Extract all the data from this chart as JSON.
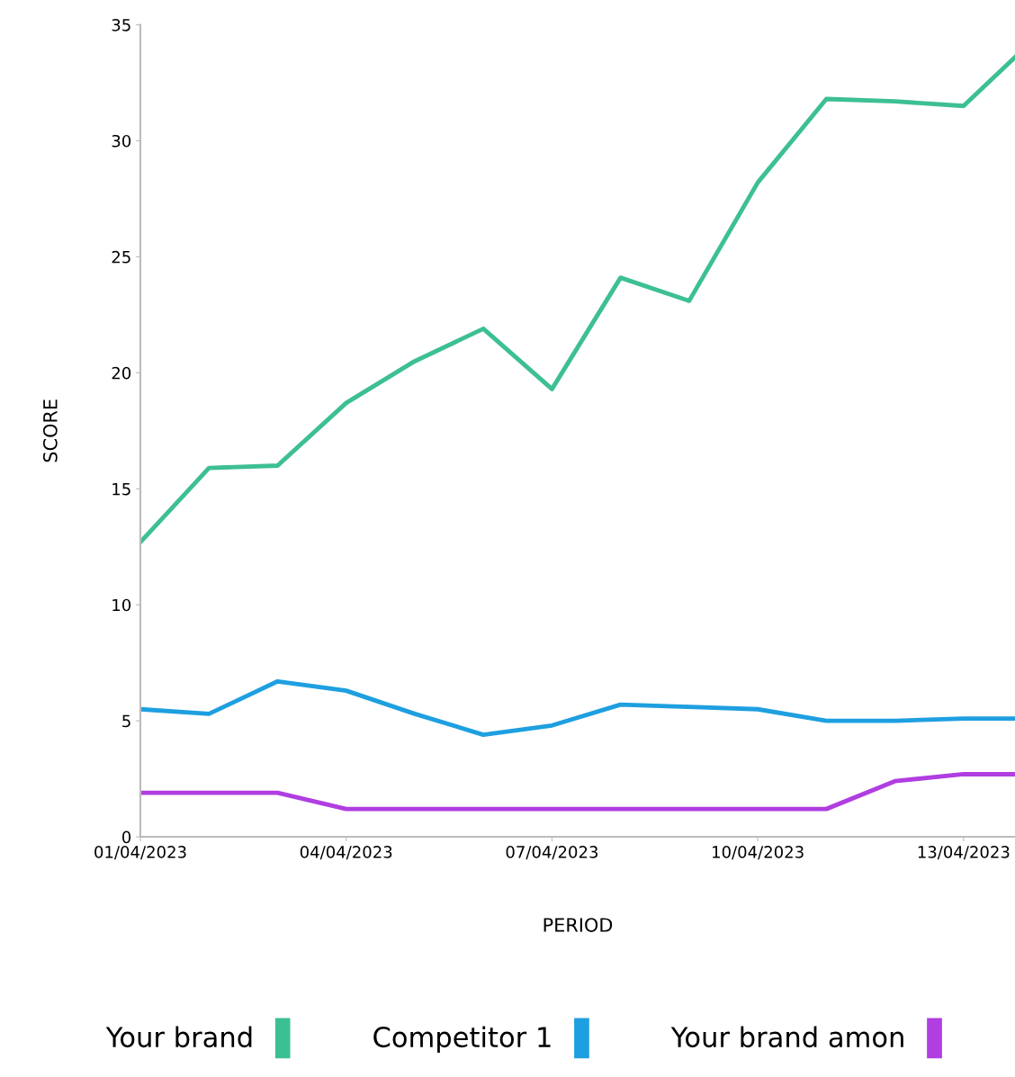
{
  "chart_data": {
    "type": "line",
    "xlabel": "PERIOD",
    "ylabel": "SCORE",
    "x": [
      "2023-04-01",
      "2023-04-02",
      "2023-04-03",
      "2023-04-04",
      "2023-04-05",
      "2023-04-06",
      "2023-04-07",
      "2023-04-08",
      "2023-04-09",
      "2023-04-10",
      "2023-04-11",
      "2023-04-12",
      "2023-04-13",
      "2023-04-13T18:00"
    ],
    "series": [
      {
        "name": "Your brand",
        "color": "#3dbf94",
        "values": [
          12.7,
          15.9,
          16.0,
          18.7,
          20.5,
          21.9,
          19.3,
          24.1,
          23.1,
          28.2,
          31.8,
          31.7,
          31.5,
          33.6
        ]
      },
      {
        "name": "Competitor 1",
        "color": "#1e9fe0",
        "values": [
          5.5,
          5.3,
          6.7,
          6.3,
          5.3,
          4.4,
          4.8,
          5.7,
          5.6,
          5.5,
          5.0,
          5.0,
          5.1,
          5.1
        ]
      },
      {
        "name": "Your brand amon",
        "color": "#b03ee0",
        "values": [
          1.9,
          1.9,
          1.9,
          1.2,
          1.2,
          1.2,
          1.2,
          1.2,
          1.2,
          1.2,
          1.2,
          2.4,
          2.7,
          2.7
        ]
      }
    ],
    "xlim": [
      "2023-04-01",
      "2023-04-13T18:00"
    ],
    "xticks": [
      {
        "value": "2023-04-01",
        "label": "01/04/2023"
      },
      {
        "value": "2023-04-04",
        "label": "04/04/2023"
      },
      {
        "value": "2023-04-07",
        "label": "07/04/2023"
      },
      {
        "value": "2023-04-10",
        "label": "10/04/2023"
      },
      {
        "value": "2023-04-13",
        "label": "13/04/2023"
      }
    ],
    "ylim": [
      0,
      35
    ],
    "yticks": [
      0,
      5,
      10,
      15,
      20,
      25,
      30,
      35
    ],
    "grid": false,
    "legend": "bottom",
    "marker": "none",
    "line_style": "solid"
  }
}
